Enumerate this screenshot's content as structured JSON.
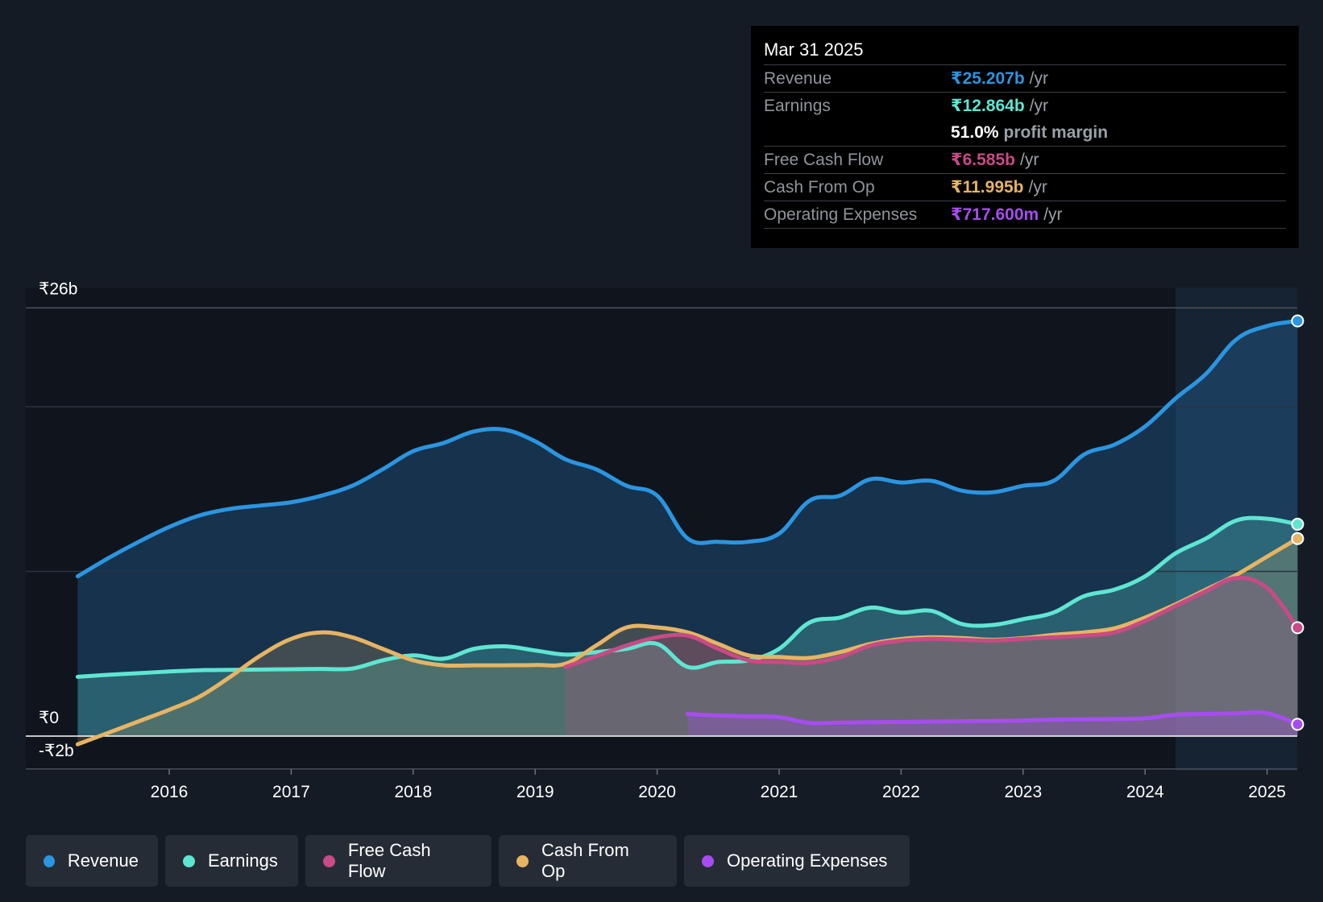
{
  "tooltip": {
    "date": "Mar 31 2025",
    "rows": [
      {
        "label": "Revenue",
        "value": "₹25.207b",
        "unit": "/yr",
        "color": "#2b95e0"
      },
      {
        "label": "Earnings",
        "value": "₹12.864b",
        "unit": "/yr",
        "color": "#5ee6d2"
      },
      {
        "label": "",
        "value": "51.0%",
        "unit": "profit margin",
        "color": "#ffffff"
      },
      {
        "label": "Free Cash Flow",
        "value": "₹6.585b",
        "unit": "/yr",
        "color": "#c84a86"
      },
      {
        "label": "Cash From Op",
        "value": "₹11.995b",
        "unit": "/yr",
        "color": "#e6b463"
      },
      {
        "label": "Operating Expenses",
        "value": "₹717.600m",
        "unit": "/yr",
        "color": "#a74df0"
      }
    ]
  },
  "legend": [
    {
      "label": "Revenue",
      "color": "#2b95e0"
    },
    {
      "label": "Earnings",
      "color": "#5ee6d2"
    },
    {
      "label": "Free Cash Flow",
      "color": "#c84a86"
    },
    {
      "label": "Cash From Op",
      "color": "#e6b463"
    },
    {
      "label": "Operating Expenses",
      "color": "#a74df0"
    }
  ],
  "chart_data": {
    "type": "area",
    "title": "",
    "xlabel": "",
    "ylabel": "",
    "ylim": [
      -2,
      26
    ],
    "y_tick_labels": [
      "₹26b",
      "₹0",
      "-₹2b"
    ],
    "x_tick_labels": [
      "2016",
      "2017",
      "2018",
      "2019",
      "2020",
      "2021",
      "2022",
      "2023",
      "2024",
      "2025"
    ],
    "grid": true,
    "legend_position": "bottom",
    "forecast_shading_from": 2024.25,
    "series": [
      {
        "name": "Revenue",
        "color": "#2b95e0",
        "points": [
          [
            2015.25,
            9.7
          ],
          [
            2015.5,
            10.8
          ],
          [
            2015.75,
            11.8
          ],
          [
            2016.0,
            12.7
          ],
          [
            2016.25,
            13.4
          ],
          [
            2016.5,
            13.8
          ],
          [
            2016.75,
            14.0
          ],
          [
            2017.0,
            14.2
          ],
          [
            2017.25,
            14.6
          ],
          [
            2017.5,
            15.2
          ],
          [
            2017.75,
            16.2
          ],
          [
            2018.0,
            17.3
          ],
          [
            2018.25,
            17.8
          ],
          [
            2018.5,
            18.5
          ],
          [
            2018.75,
            18.6
          ],
          [
            2019.0,
            17.9
          ],
          [
            2019.25,
            16.8
          ],
          [
            2019.5,
            16.2
          ],
          [
            2019.75,
            15.2
          ],
          [
            2020.0,
            14.6
          ],
          [
            2020.25,
            12.0
          ],
          [
            2020.5,
            11.8
          ],
          [
            2020.75,
            11.8
          ],
          [
            2021.0,
            12.3
          ],
          [
            2021.25,
            14.3
          ],
          [
            2021.5,
            14.6
          ],
          [
            2021.75,
            15.6
          ],
          [
            2022.0,
            15.4
          ],
          [
            2022.25,
            15.5
          ],
          [
            2022.5,
            14.9
          ],
          [
            2022.75,
            14.8
          ],
          [
            2023.0,
            15.2
          ],
          [
            2023.25,
            15.5
          ],
          [
            2023.5,
            17.1
          ],
          [
            2023.75,
            17.7
          ],
          [
            2024.0,
            18.8
          ],
          [
            2024.25,
            20.5
          ],
          [
            2024.5,
            22.0
          ],
          [
            2024.75,
            24.1
          ],
          [
            2025.0,
            24.9
          ],
          [
            2025.25,
            25.207
          ]
        ]
      },
      {
        "name": "Earnings",
        "color": "#5ee6d2",
        "points": [
          [
            2015.25,
            3.6
          ],
          [
            2015.5,
            3.72
          ],
          [
            2015.75,
            3.82
          ],
          [
            2016.0,
            3.92
          ],
          [
            2016.25,
            4.0
          ],
          [
            2016.5,
            4.02
          ],
          [
            2016.75,
            4.04
          ],
          [
            2017.0,
            4.06
          ],
          [
            2017.25,
            4.08
          ],
          [
            2017.5,
            4.1
          ],
          [
            2017.75,
            4.6
          ],
          [
            2018.0,
            4.9
          ],
          [
            2018.25,
            4.7
          ],
          [
            2018.5,
            5.3
          ],
          [
            2018.75,
            5.45
          ],
          [
            2019.0,
            5.2
          ],
          [
            2019.25,
            4.95
          ],
          [
            2019.5,
            5.1
          ],
          [
            2019.75,
            5.3
          ],
          [
            2020.0,
            5.6
          ],
          [
            2020.25,
            4.2
          ],
          [
            2020.5,
            4.5
          ],
          [
            2020.75,
            4.6
          ],
          [
            2021.0,
            5.3
          ],
          [
            2021.25,
            6.9
          ],
          [
            2021.5,
            7.2
          ],
          [
            2021.75,
            7.8
          ],
          [
            2022.0,
            7.5
          ],
          [
            2022.25,
            7.6
          ],
          [
            2022.5,
            6.8
          ],
          [
            2022.75,
            6.75
          ],
          [
            2023.0,
            7.1
          ],
          [
            2023.25,
            7.5
          ],
          [
            2023.5,
            8.5
          ],
          [
            2023.75,
            8.9
          ],
          [
            2024.0,
            9.7
          ],
          [
            2024.25,
            11.1
          ],
          [
            2024.5,
            12.0
          ],
          [
            2024.75,
            13.1
          ],
          [
            2025.0,
            13.2
          ],
          [
            2025.25,
            12.864
          ]
        ]
      },
      {
        "name": "Free Cash Flow",
        "color": "#c84a86",
        "points": [
          [
            2019.25,
            4.2
          ],
          [
            2019.5,
            4.85
          ],
          [
            2019.75,
            5.5
          ],
          [
            2020.0,
            6.0
          ],
          [
            2020.25,
            6.1
          ],
          [
            2020.5,
            5.3
          ],
          [
            2020.75,
            4.6
          ],
          [
            2021.0,
            4.5
          ],
          [
            2021.25,
            4.45
          ],
          [
            2021.5,
            4.8
          ],
          [
            2021.75,
            5.5
          ],
          [
            2022.0,
            5.8
          ],
          [
            2022.25,
            5.9
          ],
          [
            2022.5,
            5.85
          ],
          [
            2022.75,
            5.8
          ],
          [
            2023.0,
            5.9
          ],
          [
            2023.25,
            6.0
          ],
          [
            2023.5,
            6.1
          ],
          [
            2023.75,
            6.3
          ],
          [
            2024.0,
            7.0
          ],
          [
            2024.25,
            7.9
          ],
          [
            2024.5,
            8.8
          ],
          [
            2024.75,
            9.6
          ],
          [
            2025.0,
            9.0
          ],
          [
            2025.25,
            6.585
          ]
        ]
      },
      {
        "name": "Cash From Op",
        "color": "#e6b463",
        "points": [
          [
            2015.25,
            -0.5
          ],
          [
            2015.5,
            0.2
          ],
          [
            2015.75,
            0.9
          ],
          [
            2016.0,
            1.6
          ],
          [
            2016.25,
            2.4
          ],
          [
            2016.5,
            3.6
          ],
          [
            2016.75,
            4.9
          ],
          [
            2017.0,
            5.9
          ],
          [
            2017.25,
            6.3
          ],
          [
            2017.5,
            6.0
          ],
          [
            2017.75,
            5.3
          ],
          [
            2018.0,
            4.6
          ],
          [
            2018.25,
            4.3
          ],
          [
            2018.5,
            4.3
          ],
          [
            2018.75,
            4.3
          ],
          [
            2019.0,
            4.32
          ],
          [
            2019.25,
            4.4
          ],
          [
            2019.5,
            5.5
          ],
          [
            2019.75,
            6.6
          ],
          [
            2020.0,
            6.6
          ],
          [
            2020.25,
            6.3
          ],
          [
            2020.5,
            5.6
          ],
          [
            2020.75,
            4.9
          ],
          [
            2021.0,
            4.8
          ],
          [
            2021.25,
            4.75
          ],
          [
            2021.5,
            5.1
          ],
          [
            2021.75,
            5.6
          ],
          [
            2022.0,
            5.9
          ],
          [
            2022.25,
            6.0
          ],
          [
            2022.5,
            5.95
          ],
          [
            2022.75,
            5.85
          ],
          [
            2023.0,
            5.95
          ],
          [
            2023.25,
            6.15
          ],
          [
            2023.5,
            6.3
          ],
          [
            2023.75,
            6.55
          ],
          [
            2024.0,
            7.2
          ],
          [
            2024.25,
            8.0
          ],
          [
            2024.5,
            8.9
          ],
          [
            2024.75,
            9.8
          ],
          [
            2025.0,
            10.9
          ],
          [
            2025.25,
            11.995
          ]
        ]
      },
      {
        "name": "Operating Expenses",
        "color": "#a74df0",
        "points": [
          [
            2020.25,
            1.35
          ],
          [
            2020.5,
            1.25
          ],
          [
            2020.75,
            1.2
          ],
          [
            2021.0,
            1.15
          ],
          [
            2021.25,
            0.8
          ],
          [
            2021.5,
            0.82
          ],
          [
            2021.75,
            0.84
          ],
          [
            2022.0,
            0.86
          ],
          [
            2022.25,
            0.88
          ],
          [
            2022.5,
            0.9
          ],
          [
            2022.75,
            0.92
          ],
          [
            2023.0,
            0.95
          ],
          [
            2023.25,
            1.0
          ],
          [
            2023.5,
            1.02
          ],
          [
            2023.75,
            1.04
          ],
          [
            2024.0,
            1.08
          ],
          [
            2024.25,
            1.3
          ],
          [
            2024.5,
            1.35
          ],
          [
            2024.75,
            1.38
          ],
          [
            2025.0,
            1.4
          ],
          [
            2025.25,
            0.7176
          ]
        ]
      }
    ]
  }
}
